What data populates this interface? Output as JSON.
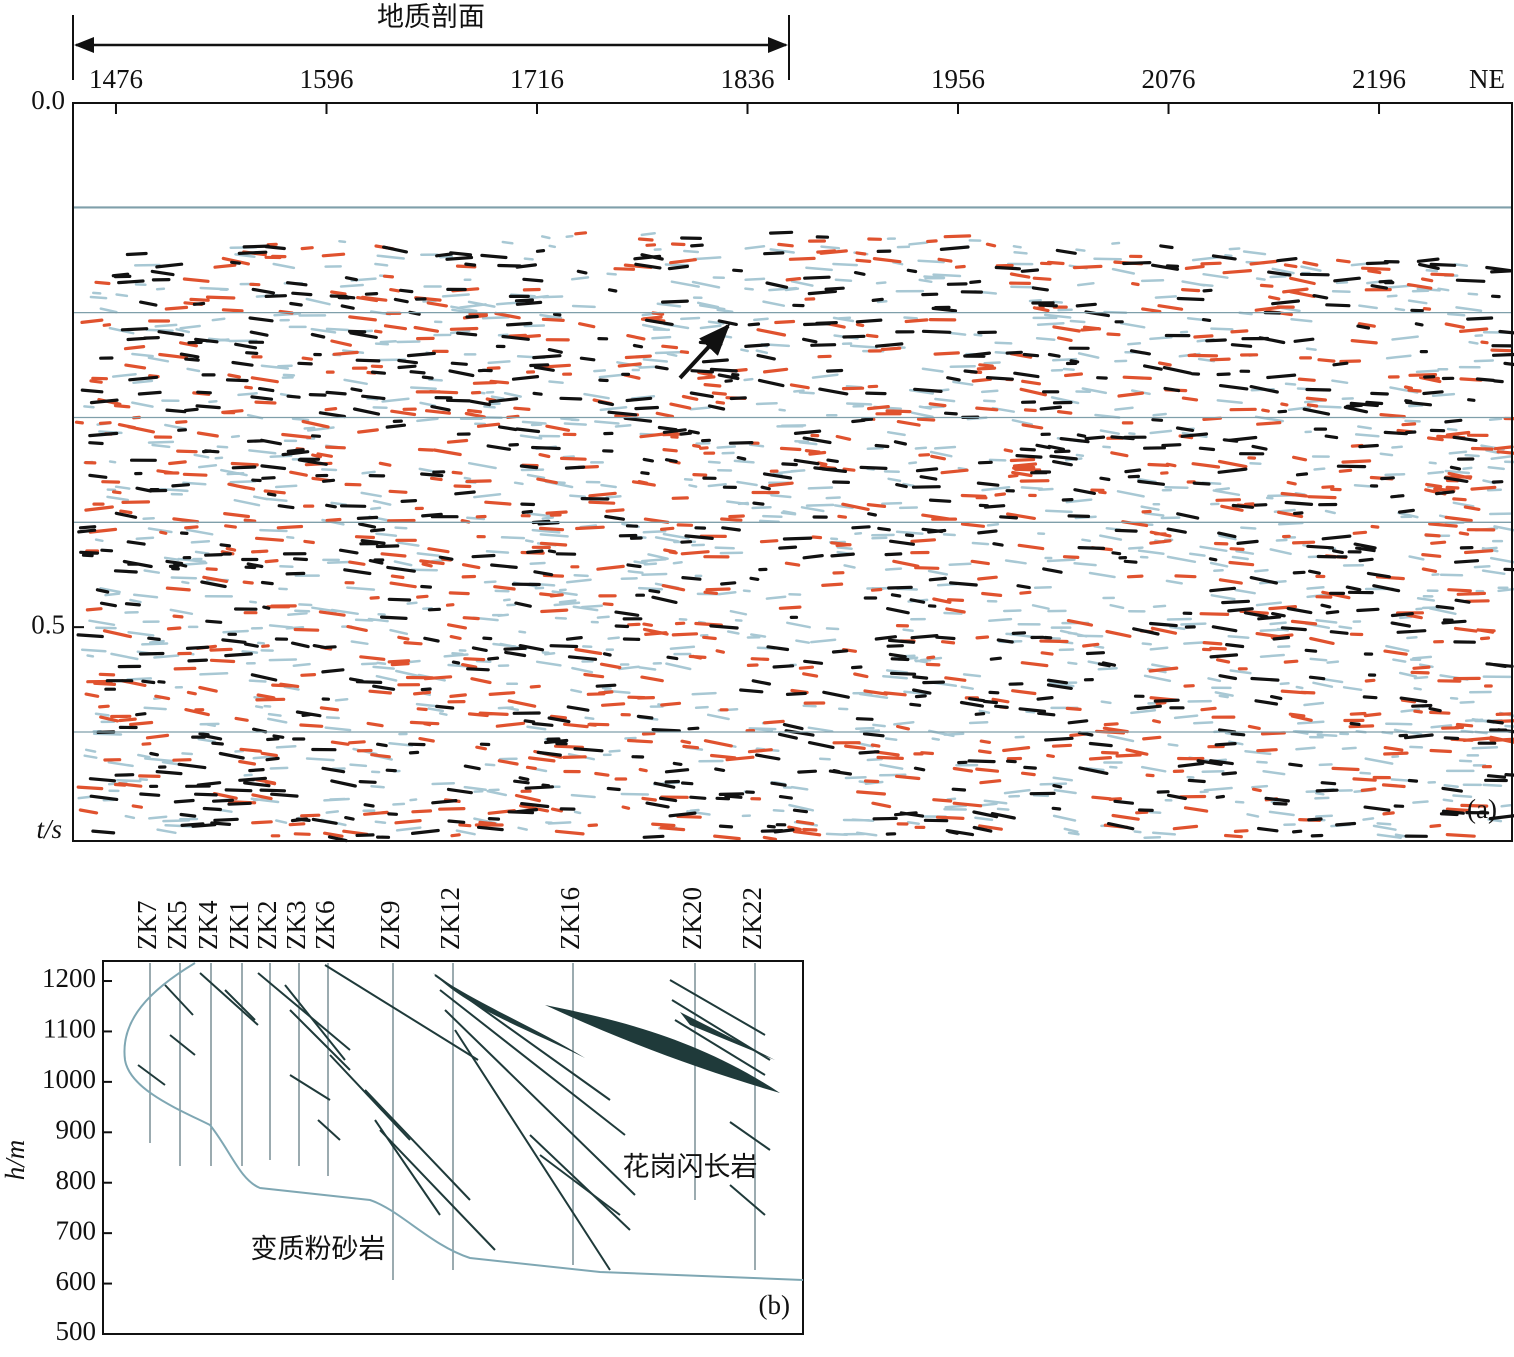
{
  "panel_a": {
    "bracket_label": "地质剖面",
    "xticks": [
      1476,
      1596,
      1716,
      1836,
      1956,
      2076,
      2196
    ],
    "xlim": [
      1451.5,
      2271.8
    ],
    "direction_label": "NE",
    "yticks": [
      {
        "value": 0,
        "label": "0.0"
      },
      {
        "value": 0.5,
        "label": "0.5"
      }
    ],
    "ylim": [
      0,
      0.704
    ],
    "y_label": "t/s",
    "hlines": [
      0.1,
      0.2,
      0.3,
      0.4,
      0.6
    ],
    "panel_label": "(a)"
  },
  "panel_b": {
    "boreholes": [
      "ZK7",
      "ZK5",
      "ZK4",
      "ZK1",
      "ZK2",
      "ZK3",
      "ZK6",
      "ZK9",
      "ZK12",
      "ZK16",
      "ZK20",
      "ZK22"
    ],
    "yticks": [
      500,
      600,
      700,
      800,
      900,
      1000,
      1100,
      1200
    ],
    "ylim": [
      500,
      1239.7
    ],
    "y_label": "h/m",
    "rock_labels": [
      "花岗闪长岩",
      "变质粉砂岩"
    ],
    "panel_label": "(b)"
  }
}
